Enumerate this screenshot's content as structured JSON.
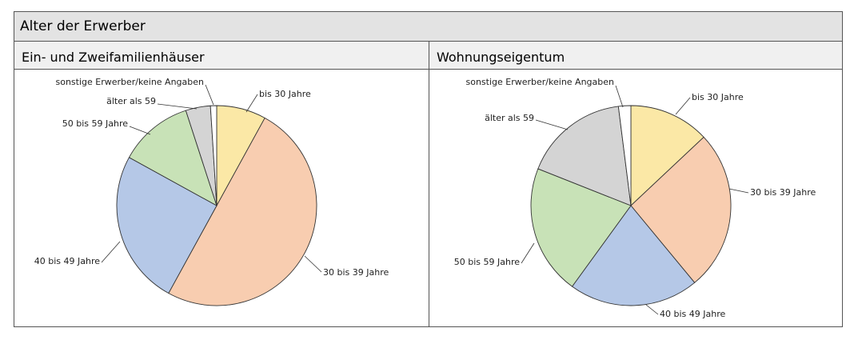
{
  "title": "Alter der Erwerber",
  "chart_data": [
    {
      "type": "pie",
      "title": "Ein- und Zweifamilienhäuser",
      "slices": [
        {
          "label": "bis 30 Jahre",
          "value": 8,
          "color": "#fbe8a6"
        },
        {
          "label": "30 bis 39 Jahre",
          "value": 50,
          "color": "#f8cdb0"
        },
        {
          "label": "40 bis 49 Jahre",
          "value": 25,
          "color": "#b5c8e7"
        },
        {
          "label": "50 bis 59 Jahre",
          "value": 12,
          "color": "#c8e2b7"
        },
        {
          "label": "älter als 59",
          "value": 4,
          "color": "#d4d4d4"
        },
        {
          "label": "sonstige Erwerber/keine Angaben",
          "value": 1,
          "color": "#ffffff"
        }
      ]
    },
    {
      "type": "pie",
      "title": "Wohnungseigentum",
      "slices": [
        {
          "label": "bis 30 Jahre",
          "value": 13,
          "color": "#fbe8a6"
        },
        {
          "label": "30 bis 39 Jahre",
          "value": 26,
          "color": "#f8cdb0"
        },
        {
          "label": "40 bis 49 Jahre",
          "value": 21,
          "color": "#b5c8e7"
        },
        {
          "label": "50 bis 59 Jahre",
          "value": 21,
          "color": "#c8e2b7"
        },
        {
          "label": "älter als 59",
          "value": 17,
          "color": "#d4d4d4"
        },
        {
          "label": "sonstige Erwerber/keine Angaben",
          "value": 2,
          "color": "#ffffff"
        }
      ]
    }
  ]
}
